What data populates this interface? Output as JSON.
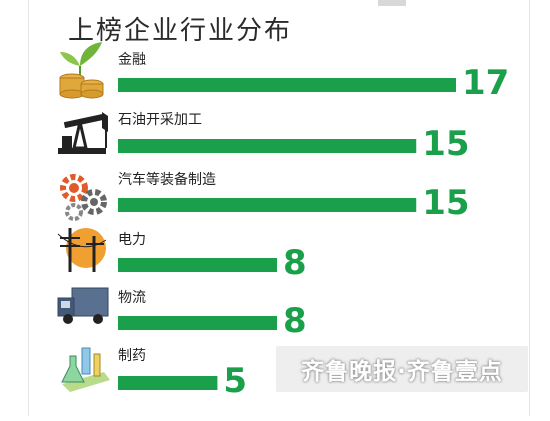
{
  "chart_data": {
    "type": "bar",
    "orientation": "horizontal",
    "title": "上榜企业行业分布",
    "categories": [
      "金融",
      "石油开采加工",
      "汽车等装备制造",
      "电力",
      "物流",
      "制药"
    ],
    "values": [
      17,
      15,
      15,
      8,
      8,
      5
    ],
    "icons": [
      "coin-stack-plant-icon",
      "oil-pump-icon",
      "gears-icon",
      "power-pylon-icon",
      "truck-icon",
      "lab-flask-icon"
    ],
    "xlim": [
      0,
      17
    ],
    "grid": false,
    "legend": "none",
    "bar_color": "#1aa04a"
  },
  "watermark": "齐鲁晚报·齐鲁壹点"
}
